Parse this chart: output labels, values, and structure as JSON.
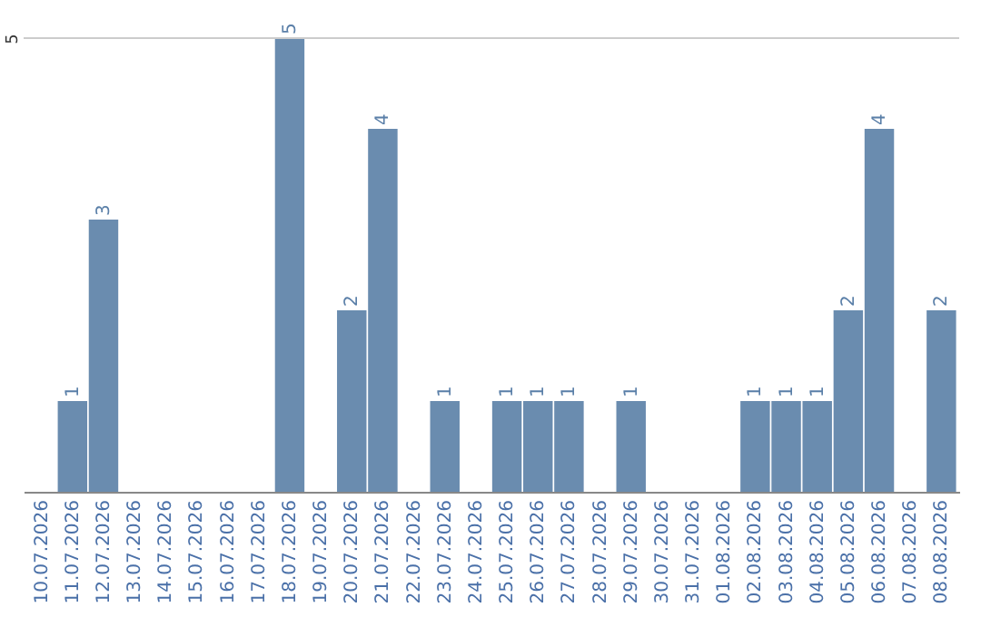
{
  "chart_data": {
    "type": "bar",
    "categories": [
      "10.07.2026",
      "11.07.2026",
      "12.07.2026",
      "13.07.2026",
      "14.07.2026",
      "15.07.2026",
      "16.07.2026",
      "17.07.2026",
      "18.07.2026",
      "19.07.2026",
      "20.07.2026",
      "21.07.2026",
      "22.07.2026",
      "23.07.2026",
      "24.07.2026",
      "25.07.2026",
      "26.07.2026",
      "27.07.2026",
      "28.07.2026",
      "29.07.2026",
      "30.07.2026",
      "31.07.2026",
      "01.08.2026",
      "02.08.2026",
      "03.08.2026",
      "04.08.2026",
      "05.08.2026",
      "06.08.2026",
      "07.08.2026",
      "08.08.2026"
    ],
    "values": [
      0,
      1,
      3,
      0,
      0,
      0,
      0,
      0,
      5,
      0,
      2,
      4,
      0,
      1,
      0,
      1,
      1,
      1,
      0,
      1,
      0,
      0,
      0,
      1,
      1,
      1,
      2,
      4,
      0,
      2
    ],
    "value_labels": [
      null,
      "1",
      "3",
      null,
      null,
      null,
      null,
      null,
      "5",
      null,
      "2",
      "4",
      null,
      "1",
      null,
      "1",
      "1",
      "1",
      null,
      "1",
      null,
      null,
      null,
      "1",
      "1",
      "1",
      "2",
      "4",
      null,
      "2"
    ],
    "color": "#6a8caf",
    "ylim": [
      0,
      5
    ],
    "yticks": [
      5
    ],
    "ref_lines": [
      {
        "axis": "y",
        "value": 5,
        "color": "#cccccc"
      }
    ]
  }
}
